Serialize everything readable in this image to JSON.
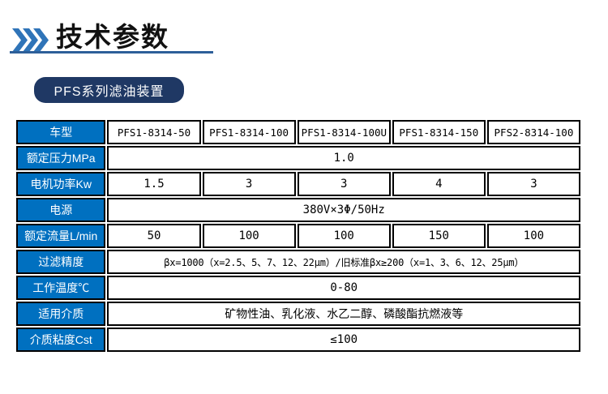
{
  "colors": {
    "table_header_bg": "#0070C0",
    "badge_bg": "#1F3864",
    "chevron": "#2F74B8",
    "underline": "#2D5F99",
    "cell_border": "#000000"
  },
  "header": {
    "title": "技术参数",
    "icon": "triple-chevron-right-icon"
  },
  "badge": {
    "label": "PFS系列滤油装置"
  },
  "table": {
    "corner_label": "车型",
    "rows": [
      {
        "label": "车型",
        "cells": [
          "PFS1-8314-50",
          "PFS1-8314-100",
          "PFS1-8314-100U",
          "PFS1-8314-150",
          "PFS2-8314-100"
        ]
      },
      {
        "label": "额定压力MPa",
        "merged": "1.0"
      },
      {
        "label": "电机功率Kw",
        "cells": [
          "1.5",
          "3",
          "3",
          "4",
          "3"
        ]
      },
      {
        "label": "电源",
        "merged": "380V×3Φ/50Hz"
      },
      {
        "label": "额定流量L/min",
        "cells": [
          "50",
          "100",
          "100",
          "150",
          "100"
        ]
      },
      {
        "label": "过滤精度",
        "merged": "βx=1000（x=2.5、5、7、12、22μm）/旧标准βx≥200（x=1、3、6、12、25μm）"
      },
      {
        "label": "工作温度℃",
        "merged": "0-80"
      },
      {
        "label": "适用介质",
        "merged": "矿物性油、乳化液、水乙二醇、磷酸酯抗燃液等"
      },
      {
        "label": "介质粘度Cst",
        "merged": "≤100"
      }
    ]
  }
}
